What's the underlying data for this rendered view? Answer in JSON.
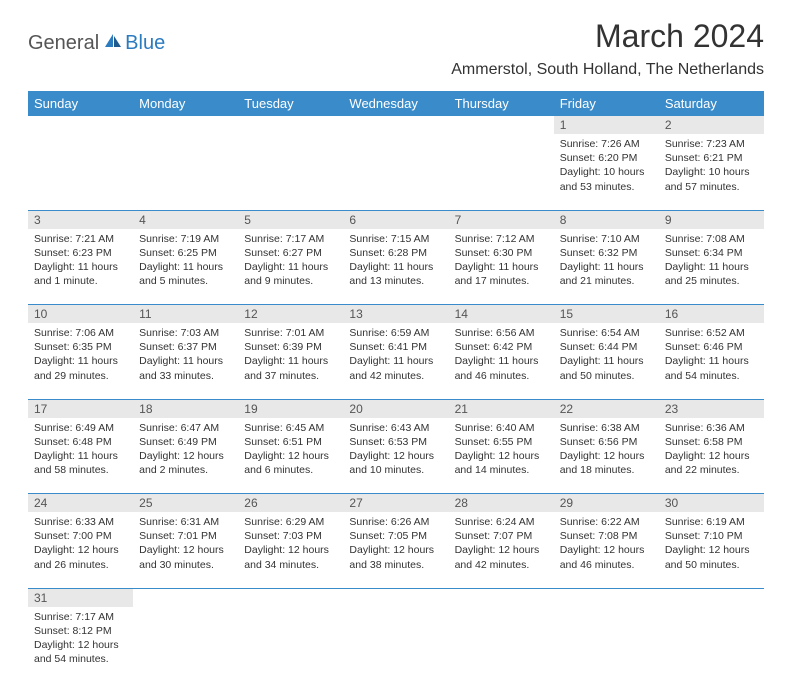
{
  "logo": {
    "text1": "General",
    "text2": "Blue"
  },
  "title": "March 2024",
  "location": "Ammerstol, South Holland, The Netherlands",
  "colors": {
    "header_bg": "#3a8bc9",
    "header_fg": "#ffffff",
    "daynum_bg": "#e8e8e8",
    "row_border": "#3a8bc9",
    "logo_gray": "#555555",
    "logo_blue": "#2b7bbf"
  },
  "dayHeaders": [
    "Sunday",
    "Monday",
    "Tuesday",
    "Wednesday",
    "Thursday",
    "Friday",
    "Saturday"
  ],
  "weeks": [
    [
      null,
      null,
      null,
      null,
      null,
      {
        "n": "1",
        "sr": "7:26 AM",
        "ss": "6:20 PM",
        "dl": "10 hours and 53 minutes."
      },
      {
        "n": "2",
        "sr": "7:23 AM",
        "ss": "6:21 PM",
        "dl": "10 hours and 57 minutes."
      }
    ],
    [
      {
        "n": "3",
        "sr": "7:21 AM",
        "ss": "6:23 PM",
        "dl": "11 hours and 1 minute."
      },
      {
        "n": "4",
        "sr": "7:19 AM",
        "ss": "6:25 PM",
        "dl": "11 hours and 5 minutes."
      },
      {
        "n": "5",
        "sr": "7:17 AM",
        "ss": "6:27 PM",
        "dl": "11 hours and 9 minutes."
      },
      {
        "n": "6",
        "sr": "7:15 AM",
        "ss": "6:28 PM",
        "dl": "11 hours and 13 minutes."
      },
      {
        "n": "7",
        "sr": "7:12 AM",
        "ss": "6:30 PM",
        "dl": "11 hours and 17 minutes."
      },
      {
        "n": "8",
        "sr": "7:10 AM",
        "ss": "6:32 PM",
        "dl": "11 hours and 21 minutes."
      },
      {
        "n": "9",
        "sr": "7:08 AM",
        "ss": "6:34 PM",
        "dl": "11 hours and 25 minutes."
      }
    ],
    [
      {
        "n": "10",
        "sr": "7:06 AM",
        "ss": "6:35 PM",
        "dl": "11 hours and 29 minutes."
      },
      {
        "n": "11",
        "sr": "7:03 AM",
        "ss": "6:37 PM",
        "dl": "11 hours and 33 minutes."
      },
      {
        "n": "12",
        "sr": "7:01 AM",
        "ss": "6:39 PM",
        "dl": "11 hours and 37 minutes."
      },
      {
        "n": "13",
        "sr": "6:59 AM",
        "ss": "6:41 PM",
        "dl": "11 hours and 42 minutes."
      },
      {
        "n": "14",
        "sr": "6:56 AM",
        "ss": "6:42 PM",
        "dl": "11 hours and 46 minutes."
      },
      {
        "n": "15",
        "sr": "6:54 AM",
        "ss": "6:44 PM",
        "dl": "11 hours and 50 minutes."
      },
      {
        "n": "16",
        "sr": "6:52 AM",
        "ss": "6:46 PM",
        "dl": "11 hours and 54 minutes."
      }
    ],
    [
      {
        "n": "17",
        "sr": "6:49 AM",
        "ss": "6:48 PM",
        "dl": "11 hours and 58 minutes."
      },
      {
        "n": "18",
        "sr": "6:47 AM",
        "ss": "6:49 PM",
        "dl": "12 hours and 2 minutes."
      },
      {
        "n": "19",
        "sr": "6:45 AM",
        "ss": "6:51 PM",
        "dl": "12 hours and 6 minutes."
      },
      {
        "n": "20",
        "sr": "6:43 AM",
        "ss": "6:53 PM",
        "dl": "12 hours and 10 minutes."
      },
      {
        "n": "21",
        "sr": "6:40 AM",
        "ss": "6:55 PM",
        "dl": "12 hours and 14 minutes."
      },
      {
        "n": "22",
        "sr": "6:38 AM",
        "ss": "6:56 PM",
        "dl": "12 hours and 18 minutes."
      },
      {
        "n": "23",
        "sr": "6:36 AM",
        "ss": "6:58 PM",
        "dl": "12 hours and 22 minutes."
      }
    ],
    [
      {
        "n": "24",
        "sr": "6:33 AM",
        "ss": "7:00 PM",
        "dl": "12 hours and 26 minutes."
      },
      {
        "n": "25",
        "sr": "6:31 AM",
        "ss": "7:01 PM",
        "dl": "12 hours and 30 minutes."
      },
      {
        "n": "26",
        "sr": "6:29 AM",
        "ss": "7:03 PM",
        "dl": "12 hours and 34 minutes."
      },
      {
        "n": "27",
        "sr": "6:26 AM",
        "ss": "7:05 PM",
        "dl": "12 hours and 38 minutes."
      },
      {
        "n": "28",
        "sr": "6:24 AM",
        "ss": "7:07 PM",
        "dl": "12 hours and 42 minutes."
      },
      {
        "n": "29",
        "sr": "6:22 AM",
        "ss": "7:08 PM",
        "dl": "12 hours and 46 minutes."
      },
      {
        "n": "30",
        "sr": "6:19 AM",
        "ss": "7:10 PM",
        "dl": "12 hours and 50 minutes."
      }
    ],
    [
      {
        "n": "31",
        "sr": "7:17 AM",
        "ss": "8:12 PM",
        "dl": "12 hours and 54 minutes."
      },
      null,
      null,
      null,
      null,
      null,
      null
    ]
  ],
  "labels": {
    "sunrise": "Sunrise:",
    "sunset": "Sunset:",
    "daylight": "Daylight:"
  }
}
